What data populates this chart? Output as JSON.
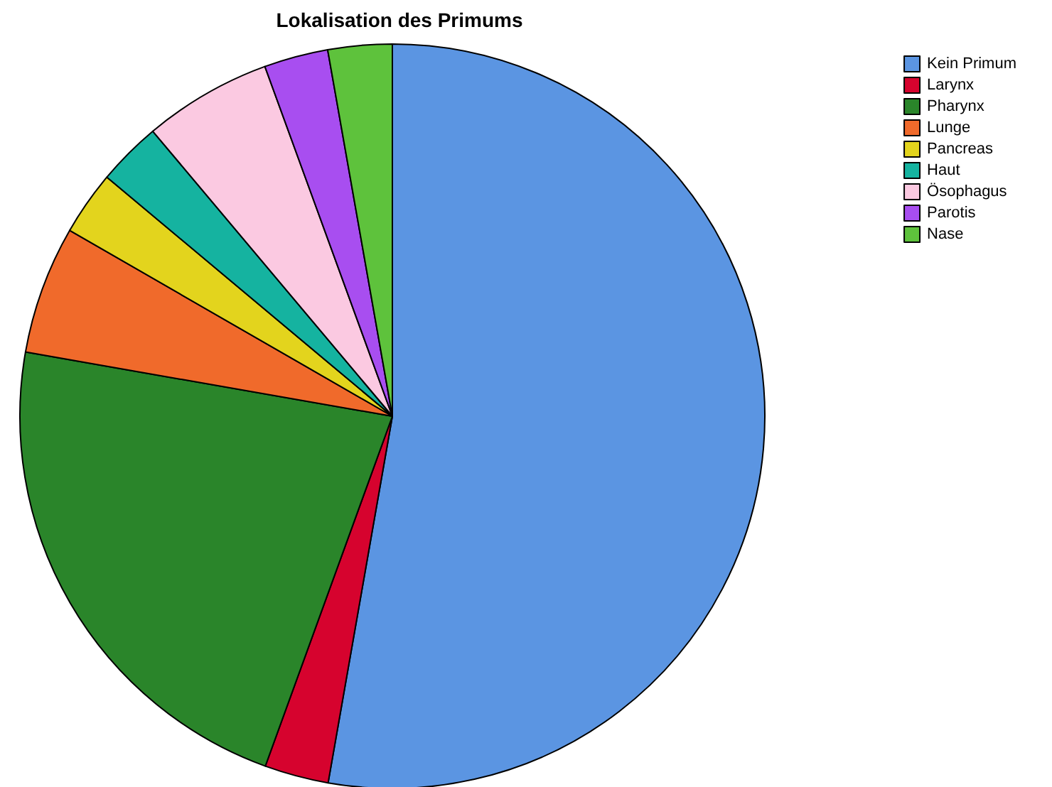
{
  "chart_data": {
    "type": "pie",
    "title": "Lokalisation des Primums",
    "categories": [
      "Kein Primum",
      "Larynx",
      "Pharynx",
      "Lunge",
      "Pancreas",
      "Haut",
      "Ösophagus",
      "Parotis",
      "Nase"
    ],
    "values": [
      52.76,
      2.78,
      22.22,
      5.56,
      2.78,
      2.78,
      5.56,
      2.78,
      2.78
    ],
    "colors": [
      "#5b95e2",
      "#d6032e",
      "#2a852a",
      "#f06a2b",
      "#e3d41d",
      "#15b3a0",
      "#fbc9e1",
      "#a84ef0",
      "#5ec23c"
    ],
    "legend": "top right"
  }
}
